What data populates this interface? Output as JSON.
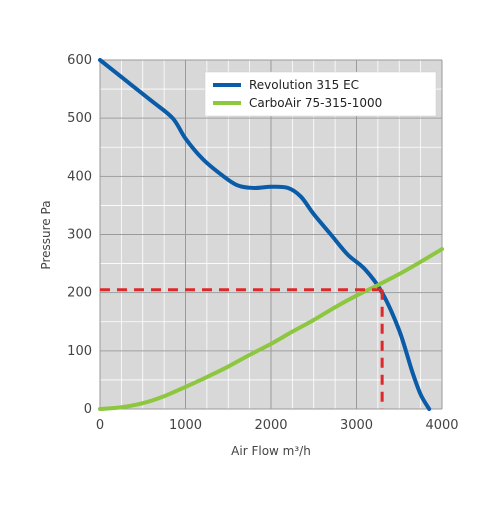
{
  "chart_data": {
    "type": "line",
    "title": "",
    "xlabel": "Air Flow m³/h",
    "ylabel": "Pressure Pa",
    "xlim": [
      0,
      4000
    ],
    "ylim": [
      0,
      600
    ],
    "x_major_ticks": [
      0,
      1000,
      2000,
      3000,
      4000
    ],
    "y_major_ticks": [
      0,
      100,
      200,
      300,
      400,
      500,
      600
    ],
    "x_tick_labels": [
      "0",
      "1000",
      "2000",
      "3000",
      "4000"
    ],
    "y_tick_labels": [
      "0",
      "100",
      "200",
      "300",
      "400",
      "500",
      "600"
    ],
    "grid": true,
    "grid_minor_step_x": 250,
    "grid_minor_step_y": 50,
    "legend_position": "top-right",
    "series": [
      {
        "name": "Revolution 315 EC",
        "color": "#0a5ba8",
        "x": [
          0,
          300,
          600,
          850,
          1000,
          1200,
          1400,
          1600,
          1800,
          2000,
          2200,
          2350,
          2500,
          2700,
          2900,
          3100,
          3300,
          3500,
          3650,
          3750,
          3850
        ],
        "y": [
          600,
          565,
          530,
          500,
          465,
          430,
          405,
          385,
          380,
          382,
          380,
          365,
          335,
          300,
          265,
          240,
          200,
          135,
          65,
          25,
          0
        ]
      },
      {
        "name": "CarboAir 75-315-1000",
        "color": "#8dc63f",
        "x": [
          0,
          250,
          500,
          750,
          1000,
          1250,
          1500,
          1750,
          2000,
          2250,
          2500,
          2750,
          3000,
          3250,
          3500,
          3750,
          4000
        ],
        "y": [
          0,
          3,
          10,
          22,
          38,
          55,
          73,
          93,
          112,
          133,
          153,
          175,
          195,
          213,
          232,
          253,
          275
        ]
      }
    ],
    "operating_point": {
      "x": 3300,
      "y": 205,
      "color": "#e0282a",
      "style": "dashed"
    }
  }
}
